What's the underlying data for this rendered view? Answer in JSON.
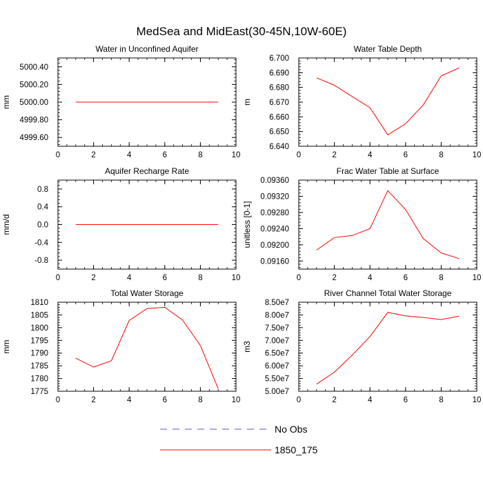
{
  "title": "MedSea and MidEast(30-45N,10W-60E)",
  "legend": {
    "entries": [
      {
        "label": "No Obs",
        "color": "#5a5ac8",
        "dash": true
      },
      {
        "label": "1850_175",
        "color": "#ff0000",
        "dash": false
      }
    ]
  },
  "chart_data": [
    {
      "type": "line",
      "title": "Water in Unconfined Aquifer",
      "ylabel": "mm",
      "xlim": [
        0,
        10
      ],
      "ylim": [
        4999.5,
        5000.5
      ],
      "xticks": [
        0,
        2,
        4,
        6,
        8,
        10
      ],
      "yticks": [
        4999.6,
        4999.8,
        5000.0,
        5000.2,
        5000.4
      ],
      "yticklabels": [
        "4999.60",
        "4999.80",
        "5000.00",
        "5000.20",
        "5000.40"
      ],
      "series": [
        {
          "name": "1850_175",
          "color": "#ff0000",
          "x": [
            1,
            2,
            3,
            4,
            5,
            6,
            7,
            8,
            9
          ],
          "y": [
            5000.0,
            5000.0,
            5000.0,
            5000.0,
            5000.0,
            5000.0,
            5000.0,
            5000.0,
            5000.0
          ]
        }
      ]
    },
    {
      "type": "line",
      "title": "Water Table Depth",
      "ylabel": "m",
      "xlim": [
        0,
        10
      ],
      "ylim": [
        6.64,
        6.7
      ],
      "xticks": [
        0,
        2,
        4,
        6,
        8,
        10
      ],
      "yticks": [
        6.64,
        6.65,
        6.66,
        6.67,
        6.68,
        6.69,
        6.7
      ],
      "yticklabels": [
        "6.640",
        "6.650",
        "6.660",
        "6.670",
        "6.680",
        "6.690",
        "6.700"
      ],
      "series": [
        {
          "name": "1850_175",
          "color": "#ff0000",
          "x": [
            1,
            2,
            3,
            4,
            5,
            6,
            7,
            8,
            9
          ],
          "y": [
            6.6865,
            6.6815,
            6.6738,
            6.6662,
            6.6478,
            6.6553,
            6.6682,
            6.6878,
            6.6932
          ]
        }
      ]
    },
    {
      "type": "line",
      "title": "Aquifer Recharge Rate",
      "ylabel": "mm/d",
      "xlim": [
        0,
        10
      ],
      "ylim": [
        -1,
        1
      ],
      "xticks": [
        0,
        2,
        4,
        6,
        8,
        10
      ],
      "yticks": [
        -0.8,
        -0.4,
        0.0,
        0.4,
        0.8
      ],
      "yticklabels": [
        "-0.8",
        "-0.4",
        "0.0",
        "0.4",
        "0.8"
      ],
      "series": [
        {
          "name": "1850_175",
          "color": "#ff0000",
          "x": [
            1,
            2,
            3,
            4,
            5,
            6,
            7,
            8,
            9
          ],
          "y": [
            0,
            0,
            0,
            0,
            0,
            0,
            0,
            0,
            0
          ]
        }
      ]
    },
    {
      "type": "line",
      "title": "Frac Water Table at Surface",
      "ylabel": "unitless [0-1]",
      "xlim": [
        0,
        10
      ],
      "ylim": [
        0.0914,
        0.0936
      ],
      "xticks": [
        0,
        2,
        4,
        6,
        8,
        10
      ],
      "yticks": [
        0.0916,
        0.092,
        0.0924,
        0.0928,
        0.0932,
        0.0936
      ],
      "yticklabels": [
        "0.09160",
        "0.09200",
        "0.09240",
        "0.09280",
        "0.09320",
        "0.09360"
      ],
      "series": [
        {
          "name": "1850_175",
          "color": "#ff0000",
          "x": [
            1,
            2,
            3,
            4,
            5,
            6,
            7,
            8,
            9
          ],
          "y": [
            0.09187,
            0.09218,
            0.09223,
            0.0924,
            0.09334,
            0.09287,
            0.09215,
            0.0918,
            0.09166
          ]
        }
      ]
    },
    {
      "type": "line",
      "title": "Total Water Storage",
      "ylabel": "mm",
      "xlim": [
        0,
        10
      ],
      "ylim": [
        1775,
        1810
      ],
      "xticks": [
        0,
        2,
        4,
        6,
        8,
        10
      ],
      "yticks": [
        1775,
        1780,
        1785,
        1790,
        1795,
        1800,
        1805,
        1810
      ],
      "yticklabels": [
        "1775",
        "1780",
        "1785",
        "1790",
        "1795",
        "1800",
        "1805",
        "1810"
      ],
      "series": [
        {
          "name": "1850_175",
          "color": "#ff0000",
          "x": [
            1,
            2,
            3,
            4,
            5,
            6,
            7,
            8,
            9
          ],
          "y": [
            1788.0,
            1784.5,
            1787.0,
            1802.8,
            1807.5,
            1808.0,
            1803.0,
            1793.0,
            1776.0
          ]
        }
      ]
    },
    {
      "type": "line",
      "title": "River Channel Total Water Storage",
      "ylabel": "m3",
      "xlim": [
        0,
        10
      ],
      "ylim": [
        50000000,
        85000000
      ],
      "xticks": [
        0,
        2,
        4,
        6,
        8,
        10
      ],
      "yticks": [
        50000000,
        55000000,
        60000000,
        65000000,
        70000000,
        75000000,
        80000000,
        85000000
      ],
      "yticklabels": [
        "5.00e7",
        "5.50e7",
        "6.00e7",
        "6.50e7",
        "7.00e7",
        "7.50e7",
        "8.00e7",
        "8.50e7"
      ],
      "series": [
        {
          "name": "1850_175",
          "color": "#ff0000",
          "x": [
            1,
            2,
            3,
            4,
            5,
            6,
            7,
            8,
            9
          ],
          "y": [
            52800000,
            57500000,
            64200000,
            71500000,
            81000000,
            79600000,
            79000000,
            78200000,
            79500000
          ]
        }
      ]
    }
  ]
}
